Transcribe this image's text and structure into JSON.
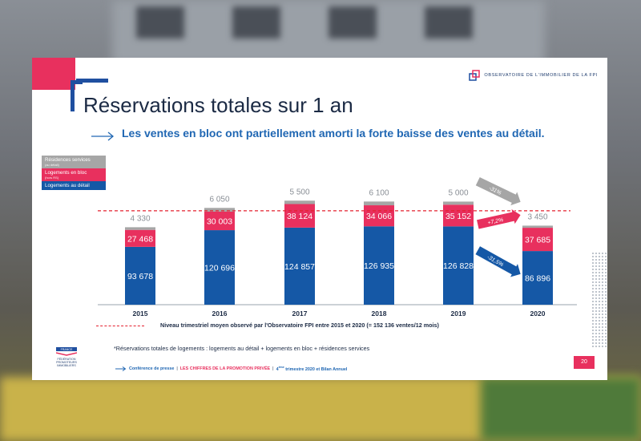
{
  "slide": {
    "logo_text": "OBSERVATOIRE DE L'IMMOBILIER DE LA FPI",
    "title": "Réservations totales sur 1 an",
    "subtitle": "Les ventes en bloc ont partiellement amorti la forte baisse des ventes au détail.",
    "footnote": "Niveau trimestriel moyen observé par l'Observatoire FPI entre 2015 et 2020 (= 152 136 ventes/12 mois)",
    "note": "*Réservations totales de logements : logements au détail + logements en bloc + résidences services",
    "ffpi_label": "FRANCE",
    "ffpi_text": [
      "FÉDÉRATION",
      "PROMOTEURS",
      "IMMOBILIERS"
    ],
    "conference_prefix": "Conférence de presse",
    "conference_highlight": "LES CHIFFRES DE LA PROMOTION PRIVÉE",
    "conference_suffix_sup": "ème",
    "conference_suffix_pre": "4",
    "conference_suffix": " trimestre 2020 et Bilan Annuel",
    "page_number": "20"
  },
  "colors": {
    "residences": "#a6a6a6",
    "bloc": "#e8305e",
    "detail": "#1558a6",
    "pink_accent": "#e8305e",
    "blue_accent": "#2067b3"
  },
  "chart_data": {
    "type": "bar",
    "stacked": true,
    "categories": [
      "2015",
      "2016",
      "2017",
      "2018",
      "2019",
      "2020"
    ],
    "series": [
      {
        "name": "Logements au détail",
        "values": [
          93678,
          120696,
          124857,
          126935,
          126828,
          86896
        ]
      },
      {
        "name": "Logements en bloc",
        "note": "(hors RS)",
        "values": [
          27468,
          30003,
          38124,
          34066,
          35152,
          37685
        ]
      },
      {
        "name": "Résidences services",
        "note": "(au détail)",
        "values": [
          4330,
          6050,
          5500,
          6100,
          5000,
          3450
        ]
      }
    ],
    "value_labels": {
      "detail": [
        "93 678",
        "120 696",
        "124 857",
        "126 935",
        "126 828",
        "86 896"
      ],
      "bloc": [
        "27 468",
        "30 003",
        "38 124",
        "34 066",
        "35 152",
        "37 685"
      ],
      "residences": [
        "4 330",
        "6 050",
        "5 500",
        "6 100",
        "5 000",
        "3 450"
      ]
    },
    "reference_line": 152136,
    "annotations": [
      {
        "label": "-31%",
        "series": "Résidences services"
      },
      {
        "label": "+7,2%",
        "series": "Logements en bloc"
      },
      {
        "label": "-31,5%",
        "series": "Logements au détail"
      }
    ],
    "legend_position": "top-left"
  }
}
